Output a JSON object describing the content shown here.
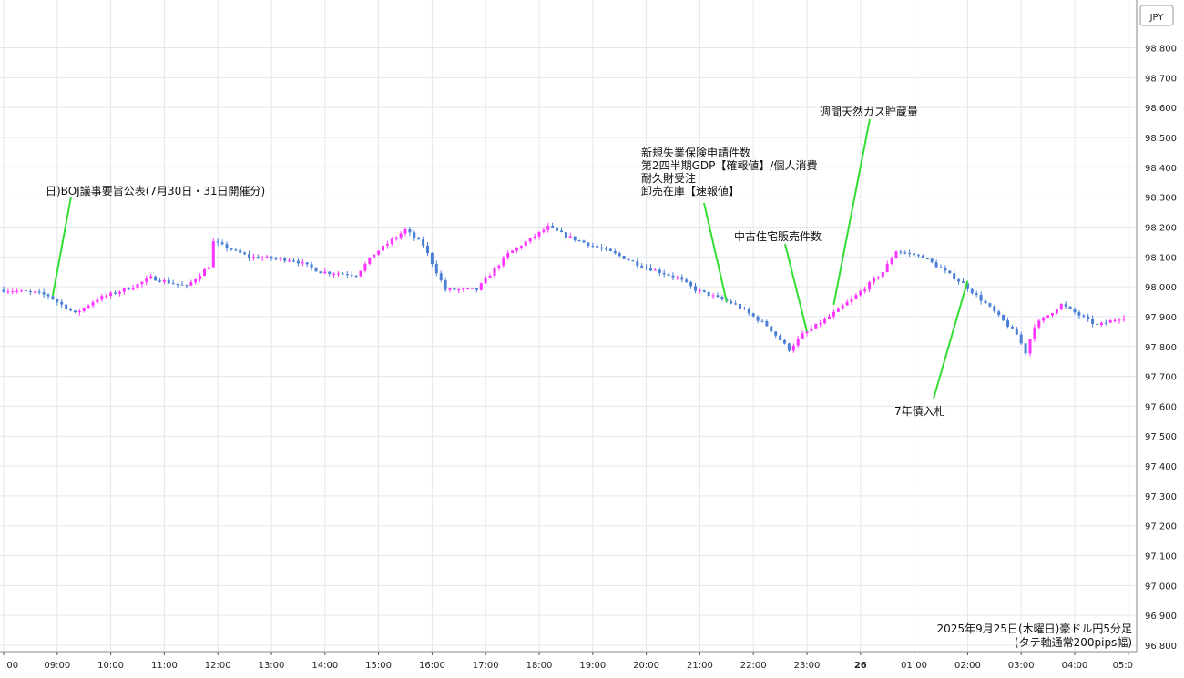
{
  "chart_data": {
    "type": "candlestick",
    "title": "2025年9月25日(木曜日)豪ドル円5分足",
    "subtitle": "(タテ軸通常200pips幅)",
    "ylabel": "JPY",
    "ylim": [
      96.8,
      98.9
    ],
    "grid": true,
    "colors": {
      "up": "#ff33ff",
      "down": "#4a7fd6",
      "grid": "#e3e7ee",
      "annotation_line": "#33dd33"
    },
    "y_ticks": [
      "98.800",
      "98.700",
      "98.600",
      "98.500",
      "98.400",
      "98.300",
      "98.200",
      "98.100",
      "98.000",
      "97.900",
      "97.800",
      "97.700",
      "97.600",
      "97.500",
      "97.400",
      "97.300",
      "97.200",
      "97.100",
      "97.000",
      "96.900",
      "96.800"
    ],
    "x_ticks": [
      ":00",
      "09:00",
      "10:00",
      "11:00",
      "12:00",
      "13:00",
      "14:00",
      "15:00",
      "16:00",
      "17:00",
      "18:00",
      "19:00",
      "20:00",
      "21:00",
      "22:00",
      "23:00",
      "26",
      "01:00",
      "02:00",
      "03:00",
      "04:00",
      "05:0"
    ],
    "close_path": [
      {
        "t": "08:00",
        "v": 97.99
      },
      {
        "t": "08:40",
        "v": 97.98
      },
      {
        "t": "08:55",
        "v": 97.97
      },
      {
        "t": "09:25",
        "v": 97.91
      },
      {
        "t": "09:50",
        "v": 97.96
      },
      {
        "t": "10:30",
        "v": 98.0
      },
      {
        "t": "10:50",
        "v": 98.03
      },
      {
        "t": "11:30",
        "v": 98.0
      },
      {
        "t": "11:55",
        "v": 98.07
      },
      {
        "t": "12:00",
        "v": 98.15
      },
      {
        "t": "12:40",
        "v": 98.1
      },
      {
        "t": "13:30",
        "v": 98.09
      },
      {
        "t": "14:00",
        "v": 98.05
      },
      {
        "t": "14:40",
        "v": 98.04
      },
      {
        "t": "15:00",
        "v": 98.11
      },
      {
        "t": "15:35",
        "v": 98.19
      },
      {
        "t": "15:55",
        "v": 98.14
      },
      {
        "t": "16:10",
        "v": 98.05
      },
      {
        "t": "16:20",
        "v": 97.99
      },
      {
        "t": "16:55",
        "v": 97.99
      },
      {
        "t": "17:30",
        "v": 98.11
      },
      {
        "t": "18:00",
        "v": 98.17
      },
      {
        "t": "18:15",
        "v": 98.2
      },
      {
        "t": "18:35",
        "v": 98.17
      },
      {
        "t": "19:30",
        "v": 98.11
      },
      {
        "t": "20:00",
        "v": 98.07
      },
      {
        "t": "20:40",
        "v": 98.03
      },
      {
        "t": "21:00",
        "v": 97.99
      },
      {
        "t": "21:45",
        "v": 97.94
      },
      {
        "t": "22:20",
        "v": 97.87
      },
      {
        "t": "22:45",
        "v": 97.79
      },
      {
        "t": "23:00",
        "v": 97.84
      },
      {
        "t": "23:30",
        "v": 97.9
      },
      {
        "t": "00:00",
        "v": 97.97
      },
      {
        "t": "00:30",
        "v": 98.05
      },
      {
        "t": "00:45",
        "v": 98.12
      },
      {
        "t": "01:15",
        "v": 98.1
      },
      {
        "t": "01:35",
        "v": 98.06
      },
      {
        "t": "02:00",
        "v": 98.01
      },
      {
        "t": "02:30",
        "v": 97.93
      },
      {
        "t": "03:00",
        "v": 97.84
      },
      {
        "t": "03:10",
        "v": 97.78
      },
      {
        "t": "03:20",
        "v": 97.87
      },
      {
        "t": "03:50",
        "v": 97.94
      },
      {
        "t": "04:30",
        "v": 97.87
      },
      {
        "t": "05:00",
        "v": 97.9
      }
    ],
    "annotations": [
      {
        "lines": [
          "日)BOJ議事要旨公表(7月30日・31日開催分)"
        ],
        "t": "08:55",
        "v": 97.97
      },
      {
        "lines": [
          "新規失業保険申請件数",
          "第2四半期GDP【確報値】/個人消費",
          "耐久財受注",
          "卸売在庫【速報値】"
        ],
        "t": "21:30",
        "v": 97.95
      },
      {
        "lines": [
          "中古住宅販売件数"
        ],
        "t": "23:00",
        "v": 97.85
      },
      {
        "lines": [
          "週間天然ガス貯蔵量"
        ],
        "t": "23:30",
        "v": 97.94
      },
      {
        "lines": [
          "7年債入札"
        ],
        "t": "02:00",
        "v": 98.02
      }
    ]
  }
}
